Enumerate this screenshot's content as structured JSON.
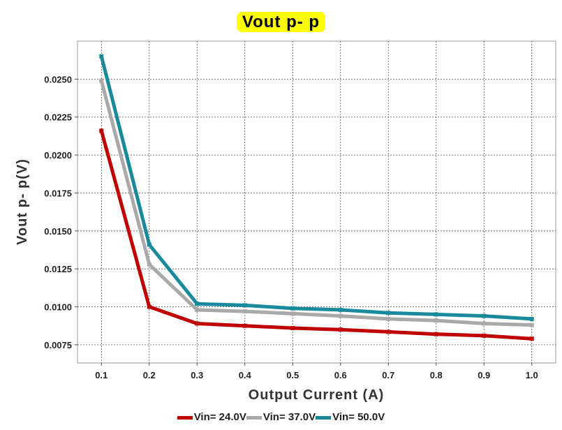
{
  "chart_data": {
    "type": "line",
    "title": "Vout p- p",
    "xlabel": "Output Current (A)",
    "ylabel": "Vout p- p(V)",
    "x": [
      0.1,
      0.2,
      0.3,
      0.4,
      0.5,
      0.6,
      0.7,
      0.8,
      0.9,
      1.0
    ],
    "x_tick_labels": [
      "0.1",
      "0.2",
      "0.3",
      "0.4",
      "0.5",
      "0.6",
      "0.7",
      "0.8",
      "0.9",
      "1.0"
    ],
    "y_tick_values": [
      0.0075,
      0.01,
      0.0125,
      0.015,
      0.0175,
      0.02,
      0.0225,
      0.025
    ],
    "y_tick_labels": [
      "0.0075",
      "0.0100",
      "0.0125",
      "0.0150",
      "0.0175",
      "0.0200",
      "0.0225",
      "0.0250"
    ],
    "xlim": [
      0.05,
      1.05
    ],
    "ylim": [
      0.0063,
      0.0275
    ],
    "grid": true,
    "legend_position": "bottom",
    "series": [
      {
        "name": "Vin= 24.0V",
        "color": "#c00000",
        "values": [
          0.0216,
          0.01,
          0.0089,
          0.00875,
          0.0086,
          0.0085,
          0.00835,
          0.0082,
          0.0081,
          0.0079
        ]
      },
      {
        "name": "Vin= 37.0V",
        "color": "#a9a9a9",
        "values": [
          0.0249,
          0.0128,
          0.0098,
          0.0097,
          0.00955,
          0.0094,
          0.0092,
          0.0091,
          0.0089,
          0.0088
        ]
      },
      {
        "name": "Vin= 50.0V",
        "color": "#198a99",
        "values": [
          0.0265,
          0.0141,
          0.0102,
          0.0101,
          0.0099,
          0.0098,
          0.0096,
          0.0095,
          0.0094,
          0.0092
        ]
      }
    ]
  }
}
